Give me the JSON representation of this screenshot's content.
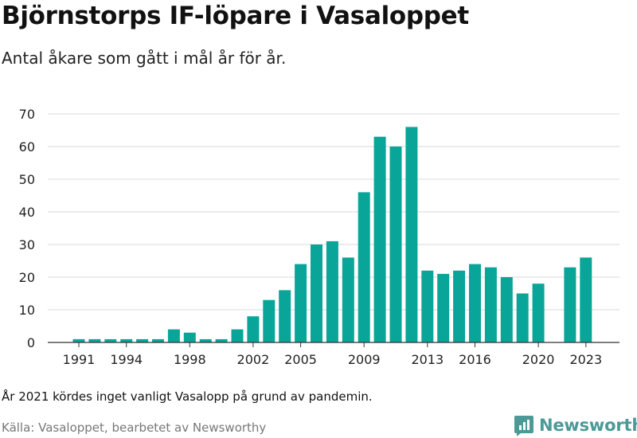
{
  "title": "Björnstorps IF-löpare i Vasaloppet",
  "subtitle": "Antal åkare som gått i mål år för år.",
  "note": "År 2021 kördes inget vanligt Vasalopp på grund av pandemin.",
  "source": "Källa: Vasaloppet, bearbetet av Newsworthy",
  "brand": "Newsworthy",
  "colors": {
    "bar": "#0aa599",
    "grid": "#d9d9d9",
    "axis": "#333333",
    "brand": "#4b9a97"
  },
  "chart_data": {
    "type": "bar",
    "title": "Björnstorps IF-löpare i Vasaloppet",
    "subtitle": "Antal åkare som gått i mål år för år.",
    "xlabel": "",
    "ylabel": "",
    "ylim": [
      0,
      70
    ],
    "yticks": [
      0,
      10,
      20,
      30,
      40,
      50,
      60,
      70
    ],
    "xticks": [
      1991,
      1994,
      1998,
      2002,
      2005,
      2009,
      2013,
      2016,
      2020,
      2023
    ],
    "grid": true,
    "legend": "none",
    "years": [
      1991,
      1992,
      1993,
      1994,
      1995,
      1996,
      1997,
      1998,
      1999,
      2000,
      2001,
      2002,
      2003,
      2004,
      2005,
      2006,
      2007,
      2008,
      2009,
      2010,
      2011,
      2012,
      2013,
      2014,
      2015,
      2016,
      2017,
      2018,
      2019,
      2020,
      2021,
      2022,
      2023
    ],
    "values": [
      1,
      1,
      1,
      1,
      1,
      1,
      4,
      3,
      1,
      1,
      4,
      8,
      13,
      16,
      24,
      30,
      31,
      26,
      46,
      63,
      60,
      66,
      22,
      21,
      22,
      24,
      23,
      20,
      15,
      18,
      null,
      23,
      26
    ]
  }
}
